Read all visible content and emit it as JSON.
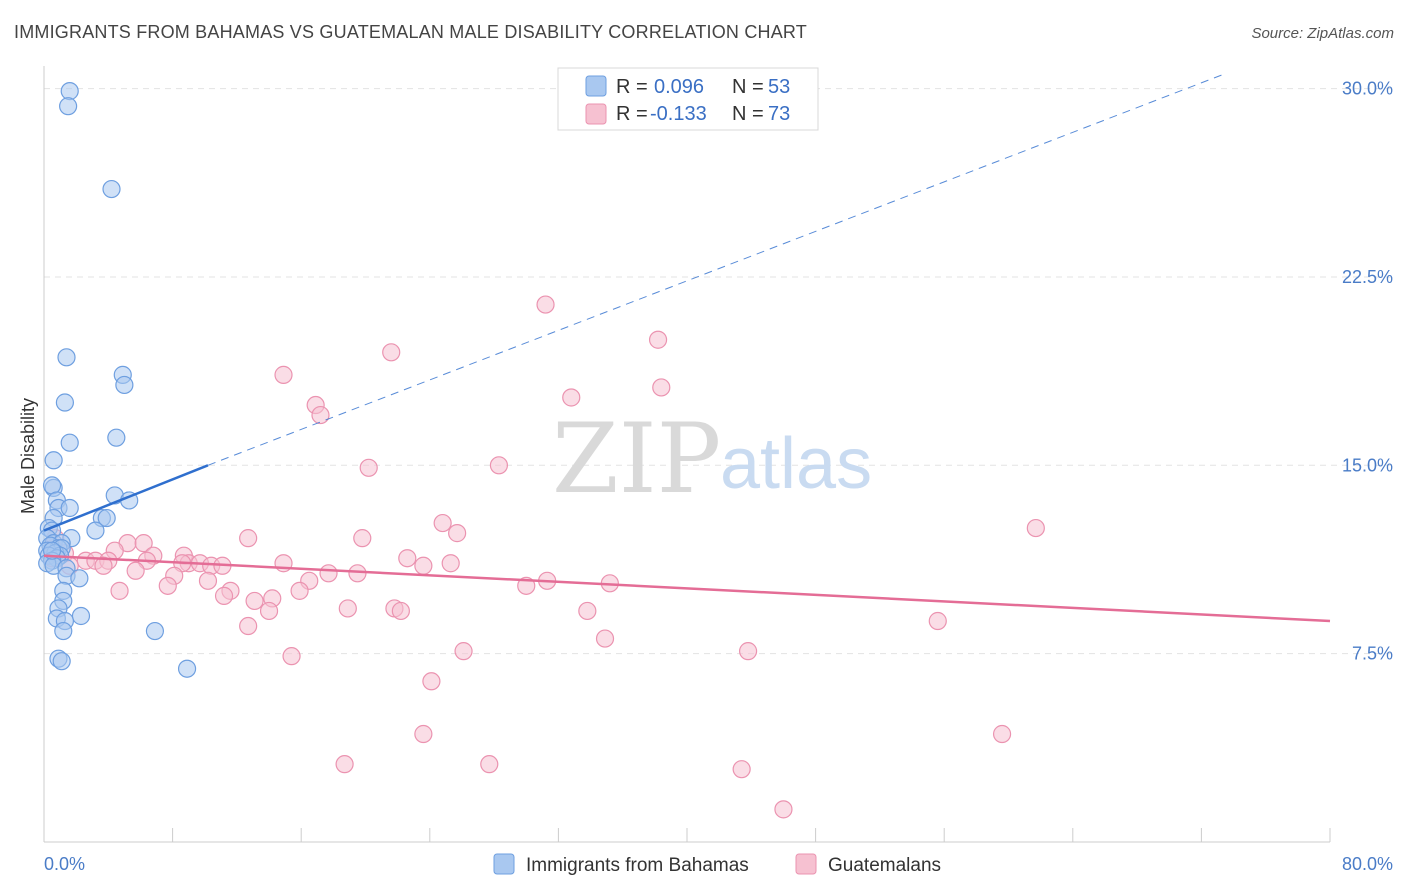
{
  "header": {
    "title": "IMMIGRANTS FROM BAHAMAS VS GUATEMALAN MALE DISABILITY CORRELATION CHART",
    "source": "Source: ZipAtlas.com"
  },
  "watermark": {
    "zip": "ZIP",
    "atlas": "atlas"
  },
  "colors": {
    "blue_fill": "#a9c8f0",
    "blue_stroke": "#6e9fe0",
    "blue_line": "#2f6fce",
    "pink_fill": "#f6c1d1",
    "pink_stroke": "#eb93b0",
    "pink_line": "#e46d96",
    "grid": "#e3e3e3",
    "tick_text": "#4a7cc7"
  },
  "chart_data": {
    "type": "scatter",
    "title": "IMMIGRANTS FROM BAHAMAS VS GUATEMALAN MALE DISABILITY CORRELATION CHART",
    "xlabel": "",
    "ylabel": "Male Disability",
    "xlim": [
      0,
      80
    ],
    "ylim": [
      0,
      30.9
    ],
    "y_ticks": [
      7.5,
      15.0,
      22.5,
      30.0
    ],
    "y_tick_labels": [
      "7.5%",
      "15.0%",
      "22.5%",
      "30.0%"
    ],
    "x_tick_labels": [
      "0.0%",
      "80.0%"
    ],
    "grid": true,
    "legend": {
      "position": "top-center",
      "entries": [
        {
          "r_label": "R =",
          "r_value": "0.096",
          "n_label": "N =",
          "n_value": "53"
        },
        {
          "r_label": "R =",
          "r_value": "-0.133",
          "n_label": "N =",
          "n_value": "73"
        }
      ]
    },
    "series": [
      {
        "name": "Immigrants from Bahamas",
        "trend": {
          "x0": 0,
          "y0": 12.4,
          "x1": 10.2,
          "y1": 15.0,
          "dashed_to_x": 73.5,
          "dashed_to_y": 30.6
        },
        "points": [
          [
            1.6,
            29.9
          ],
          [
            1.5,
            29.3
          ],
          [
            4.2,
            26.0
          ],
          [
            1.4,
            19.3
          ],
          [
            4.9,
            18.6
          ],
          [
            5.0,
            18.2
          ],
          [
            1.3,
            17.5
          ],
          [
            4.5,
            16.1
          ],
          [
            1.6,
            15.9
          ],
          [
            0.6,
            15.2
          ],
          [
            0.6,
            14.1
          ],
          [
            0.5,
            14.2
          ],
          [
            4.4,
            13.8
          ],
          [
            0.8,
            13.6
          ],
          [
            5.3,
            13.6
          ],
          [
            0.9,
            13.3
          ],
          [
            1.6,
            13.3
          ],
          [
            3.6,
            12.9
          ],
          [
            3.9,
            12.9
          ],
          [
            0.6,
            12.9
          ],
          [
            0.3,
            12.5
          ],
          [
            0.5,
            12.4
          ],
          [
            3.2,
            12.4
          ],
          [
            1.7,
            12.1
          ],
          [
            0.2,
            12.1
          ],
          [
            0.6,
            11.9
          ],
          [
            1.1,
            11.9
          ],
          [
            0.4,
            11.8
          ],
          [
            0.9,
            11.7
          ],
          [
            1.1,
            11.7
          ],
          [
            0.2,
            11.6
          ],
          [
            0.7,
            11.5
          ],
          [
            0.3,
            11.4
          ],
          [
            1.0,
            11.4
          ],
          [
            0.8,
            11.3
          ],
          [
            0.5,
            11.2
          ],
          [
            0.2,
            11.1
          ],
          [
            0.6,
            11.0
          ],
          [
            1.4,
            10.9
          ],
          [
            1.4,
            10.6
          ],
          [
            2.2,
            10.5
          ],
          [
            1.2,
            10.0
          ],
          [
            1.2,
            9.6
          ],
          [
            0.9,
            9.3
          ],
          [
            2.3,
            9.0
          ],
          [
            0.8,
            8.9
          ],
          [
            1.3,
            8.8
          ],
          [
            1.2,
            8.4
          ],
          [
            6.9,
            8.4
          ],
          [
            0.9,
            7.3
          ],
          [
            1.1,
            7.2
          ],
          [
            8.9,
            6.9
          ],
          [
            0.5,
            11.6
          ]
        ]
      },
      {
        "name": "Guatemalans",
        "trend": {
          "x0": 0,
          "y0": 11.4,
          "x1": 80,
          "y1": 8.8
        },
        "points": [
          [
            31.2,
            21.4
          ],
          [
            38.2,
            20.0
          ],
          [
            21.6,
            19.5
          ],
          [
            38.4,
            18.1
          ],
          [
            14.9,
            18.6
          ],
          [
            32.8,
            17.7
          ],
          [
            16.9,
            17.4
          ],
          [
            17.2,
            17.0
          ],
          [
            28.3,
            15.0
          ],
          [
            20.2,
            14.9
          ],
          [
            61.7,
            12.5
          ],
          [
            24.8,
            12.7
          ],
          [
            25.7,
            12.3
          ],
          [
            12.7,
            12.1
          ],
          [
            19.8,
            12.1
          ],
          [
            0.7,
            12.1
          ],
          [
            5.2,
            11.9
          ],
          [
            6.2,
            11.9
          ],
          [
            0.6,
            11.7
          ],
          [
            4.4,
            11.6
          ],
          [
            1.3,
            11.5
          ],
          [
            6.8,
            11.4
          ],
          [
            8.7,
            11.4
          ],
          [
            0.5,
            11.3
          ],
          [
            2.6,
            11.2
          ],
          [
            3.2,
            11.2
          ],
          [
            4.0,
            11.2
          ],
          [
            6.4,
            11.2
          ],
          [
            9.0,
            11.1
          ],
          [
            9.7,
            11.1
          ],
          [
            8.6,
            11.1
          ],
          [
            10.4,
            11.0
          ],
          [
            11.1,
            11.0
          ],
          [
            14.9,
            11.1
          ],
          [
            22.6,
            11.3
          ],
          [
            23.6,
            11.0
          ],
          [
            25.3,
            11.1
          ],
          [
            3.7,
            11.0
          ],
          [
            1.6,
            11.0
          ],
          [
            5.7,
            10.8
          ],
          [
            8.1,
            10.6
          ],
          [
            17.7,
            10.7
          ],
          [
            19.5,
            10.7
          ],
          [
            16.5,
            10.4
          ],
          [
            10.2,
            10.4
          ],
          [
            7.7,
            10.2
          ],
          [
            30.0,
            10.2
          ],
          [
            31.3,
            10.4
          ],
          [
            35.2,
            10.3
          ],
          [
            4.7,
            10.0
          ],
          [
            11.6,
            10.0
          ],
          [
            15.9,
            10.0
          ],
          [
            11.2,
            9.8
          ],
          [
            14.2,
            9.7
          ],
          [
            13.1,
            9.6
          ],
          [
            14.0,
            9.2
          ],
          [
            18.9,
            9.3
          ],
          [
            21.8,
            9.3
          ],
          [
            22.2,
            9.2
          ],
          [
            33.8,
            9.2
          ],
          [
            55.6,
            8.8
          ],
          [
            12.7,
            8.6
          ],
          [
            34.9,
            8.1
          ],
          [
            43.8,
            7.6
          ],
          [
            26.1,
            7.6
          ],
          [
            15.4,
            7.4
          ],
          [
            24.1,
            6.4
          ],
          [
            23.6,
            4.3
          ],
          [
            59.6,
            4.3
          ],
          [
            18.7,
            3.1
          ],
          [
            27.7,
            3.1
          ],
          [
            43.4,
            2.9
          ],
          [
            46.0,
            1.3
          ]
        ]
      }
    ]
  }
}
